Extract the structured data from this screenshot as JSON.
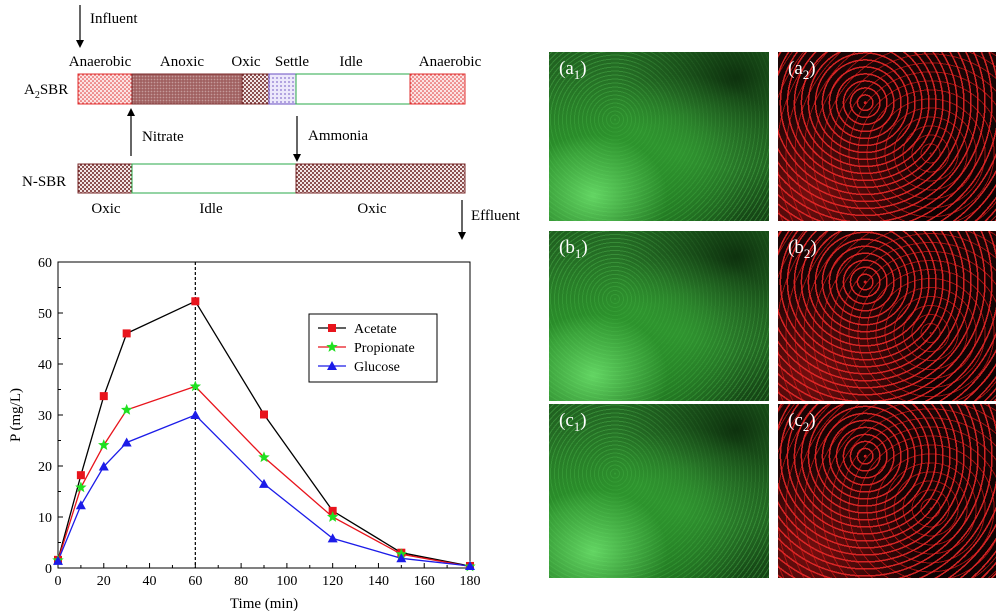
{
  "schematic": {
    "influent_label": "Influent",
    "effluent_label": "Effluent",
    "reactor_a": {
      "name": "A",
      "name_sub": "2",
      "name_suffix": "SBR"
    },
    "reactor_n": {
      "name": "N-SBR"
    },
    "phases_a": [
      {
        "key": "anaerobic-1",
        "label": "Anaerobic",
        "pattern": "anaerobic"
      },
      {
        "key": "anoxic",
        "label": "Anoxic",
        "pattern": "anoxic"
      },
      {
        "key": "oxic",
        "label": "Oxic",
        "pattern": "oxic"
      },
      {
        "key": "settle",
        "label": "Settle",
        "pattern": "settle"
      },
      {
        "key": "idle",
        "label": "Idle",
        "pattern": "idle"
      },
      {
        "key": "anaerobic-2",
        "label": "Anaerobic",
        "pattern": "anaerobic"
      }
    ],
    "phases_n": [
      {
        "key": "oxic-1",
        "label": "Oxic",
        "pattern": "oxic"
      },
      {
        "key": "idle",
        "label": "Idle",
        "pattern": "idle"
      },
      {
        "key": "oxic-2",
        "label": "Oxic",
        "pattern": "oxic"
      }
    ],
    "nitrate_label": "Nitrate",
    "ammonia_label": "Ammonia",
    "colors": {
      "anaerobic": "#e03030",
      "anoxic": "#8b4a4a",
      "oxic": "#7a2a2a",
      "settle": "#6a4fc0",
      "idle_border": "#2aa84a"
    }
  },
  "chart_data": {
    "type": "line",
    "title": "",
    "xlabel": "Time (min)",
    "ylabel": "P (mg/L)",
    "xlim": [
      0,
      180
    ],
    "ylim": [
      0,
      60
    ],
    "xticks": [
      0,
      20,
      40,
      60,
      80,
      100,
      120,
      140,
      160,
      180
    ],
    "yticks": [
      0,
      10,
      20,
      30,
      40,
      50,
      60
    ],
    "vline_x": 60,
    "legend_position": "top-right",
    "series": [
      {
        "name": "Acetate",
        "color": "#e8141c",
        "marker": "square",
        "x": [
          0,
          10,
          20,
          30,
          60,
          90,
          120,
          150,
          180
        ],
        "y": [
          1.6,
          18.2,
          33.7,
          46.0,
          52.3,
          30.1,
          11.2,
          3.0,
          0.4
        ]
      },
      {
        "name": "Propionate",
        "color": "#20e020",
        "line_color": "#e8141c",
        "marker": "star",
        "x": [
          0,
          10,
          20,
          30,
          60,
          90,
          120,
          150,
          180
        ],
        "y": [
          1.5,
          15.8,
          24.1,
          31.0,
          35.6,
          21.7,
          10.0,
          2.7,
          0.3
        ]
      },
      {
        "name": "Glucose",
        "color": "#1c1ce8",
        "marker": "triangle",
        "x": [
          0,
          10,
          20,
          30,
          60,
          90,
          120,
          150,
          180
        ],
        "y": [
          1.4,
          12.3,
          19.9,
          24.6,
          30.0,
          16.5,
          5.8,
          1.9,
          0.4
        ]
      }
    ],
    "series_line_colors": {
      "Acetate": "#000000",
      "Propionate": "#e8141c",
      "Glucose": "#1c1ce8"
    }
  },
  "micrographs": [
    {
      "key": "a1",
      "letter": "a",
      "index": "1",
      "stain": "green"
    },
    {
      "key": "a2",
      "letter": "a",
      "index": "2",
      "stain": "red"
    },
    {
      "key": "b1",
      "letter": "b",
      "index": "1",
      "stain": "green"
    },
    {
      "key": "b2",
      "letter": "b",
      "index": "2",
      "stain": "red"
    },
    {
      "key": "c1",
      "letter": "c",
      "index": "1",
      "stain": "green"
    },
    {
      "key": "c2",
      "letter": "c",
      "index": "2",
      "stain": "red"
    }
  ]
}
